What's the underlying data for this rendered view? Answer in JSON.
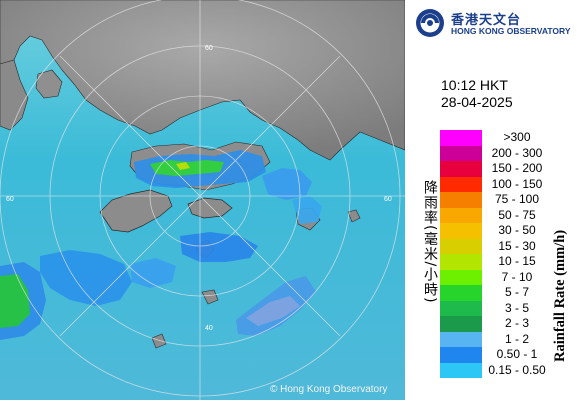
{
  "header": {
    "org_name_zh": "香港天文台",
    "org_name_en": "HONG KONG OBSERVATORY"
  },
  "timestamp": {
    "time": "10:12 HKT",
    "date": "28-04-2025"
  },
  "legend": {
    "title_zh": "降雨率(毫米/小時)",
    "title_en": "Rainfall Rate (mm/h)",
    "items": [
      {
        "label": ">300",
        "color": "#ff00ff"
      },
      {
        "label": "200 - 300",
        "color": "#cc0099"
      },
      {
        "label": "150 - 200",
        "color": "#e8003e"
      },
      {
        "label": "100 - 150",
        "color": "#ff2a00"
      },
      {
        "label": "75 - 100",
        "color": "#f77f00"
      },
      {
        "label": "50 - 75",
        "color": "#f8a800"
      },
      {
        "label": "30 - 50",
        "color": "#f4c000"
      },
      {
        "label": "15 - 30",
        "color": "#d8cf00"
      },
      {
        "label": "10 - 15",
        "color": "#b2e600"
      },
      {
        "label": "7 - 10",
        "color": "#6cf000"
      },
      {
        "label": "5 - 7",
        "color": "#27d42b"
      },
      {
        "label": "3 - 5",
        "color": "#1fba4c"
      },
      {
        "label": "2 - 3",
        "color": "#1a9a4a"
      },
      {
        "label": "1 - 2",
        "color": "#59b4f2"
      },
      {
        "label": "0.50 - 1",
        "color": "#1f86f0"
      },
      {
        "label": "0.15 - 0.50",
        "color": "#2cc7f4"
      }
    ]
  },
  "map": {
    "range_ring_labels": [
      "60",
      "60",
      "40",
      "60"
    ],
    "copyright": "© Hong Kong Observatory"
  }
}
